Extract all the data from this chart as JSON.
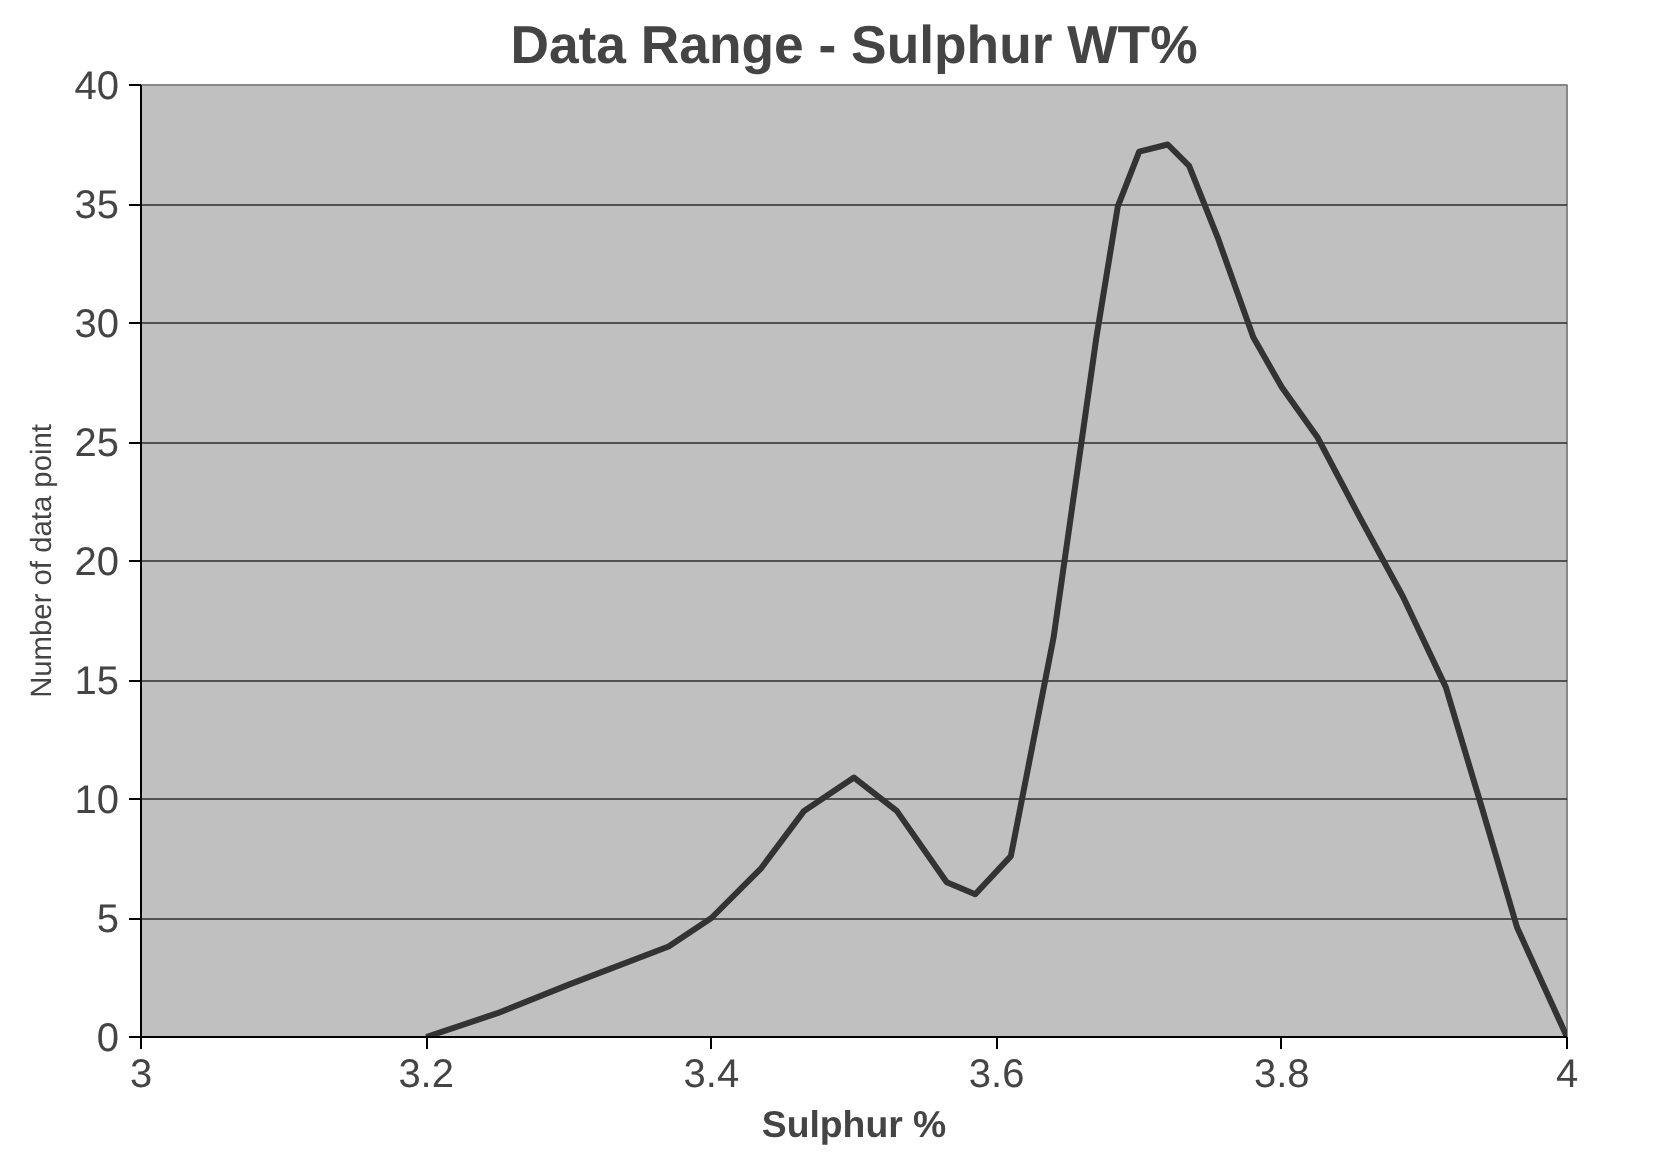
{
  "chart_data": {
    "type": "line",
    "title": "Data Range - Sulphur WT%",
    "xlabel": "Sulphur %",
    "ylabel": "Number of data point",
    "x": [
      3.2,
      3.25,
      3.3,
      3.37,
      3.4,
      3.435,
      3.465,
      3.5,
      3.53,
      3.565,
      3.585,
      3.61,
      3.625,
      3.64,
      3.655,
      3.67,
      3.685,
      3.7,
      3.72,
      3.735,
      3.755,
      3.78,
      3.8,
      3.825,
      3.855,
      3.885,
      3.915,
      3.94,
      3.965,
      4.0
    ],
    "series": [
      {
        "color": "#333333",
        "values": [
          0,
          1,
          2.2,
          3.8,
          5,
          7.1,
          9.5,
          10.9,
          9.5,
          6.5,
          6,
          7.6,
          12.2,
          16.8,
          23.1,
          29.4,
          34.9,
          37.2,
          37.5,
          36.6,
          33.6,
          29.4,
          27.3,
          25.2,
          21.8,
          18.5,
          14.7,
          9.7,
          4.6,
          0
        ]
      }
    ],
    "xlim": [
      3,
      4
    ],
    "ylim": [
      0,
      40
    ],
    "xticks": [
      3,
      3.2,
      3.4,
      3.6,
      3.8,
      4
    ],
    "yticks": [
      0,
      5,
      10,
      15,
      20,
      25,
      30,
      35,
      40
    ],
    "grid": "y",
    "marker": "none",
    "line_style": "solid"
  }
}
